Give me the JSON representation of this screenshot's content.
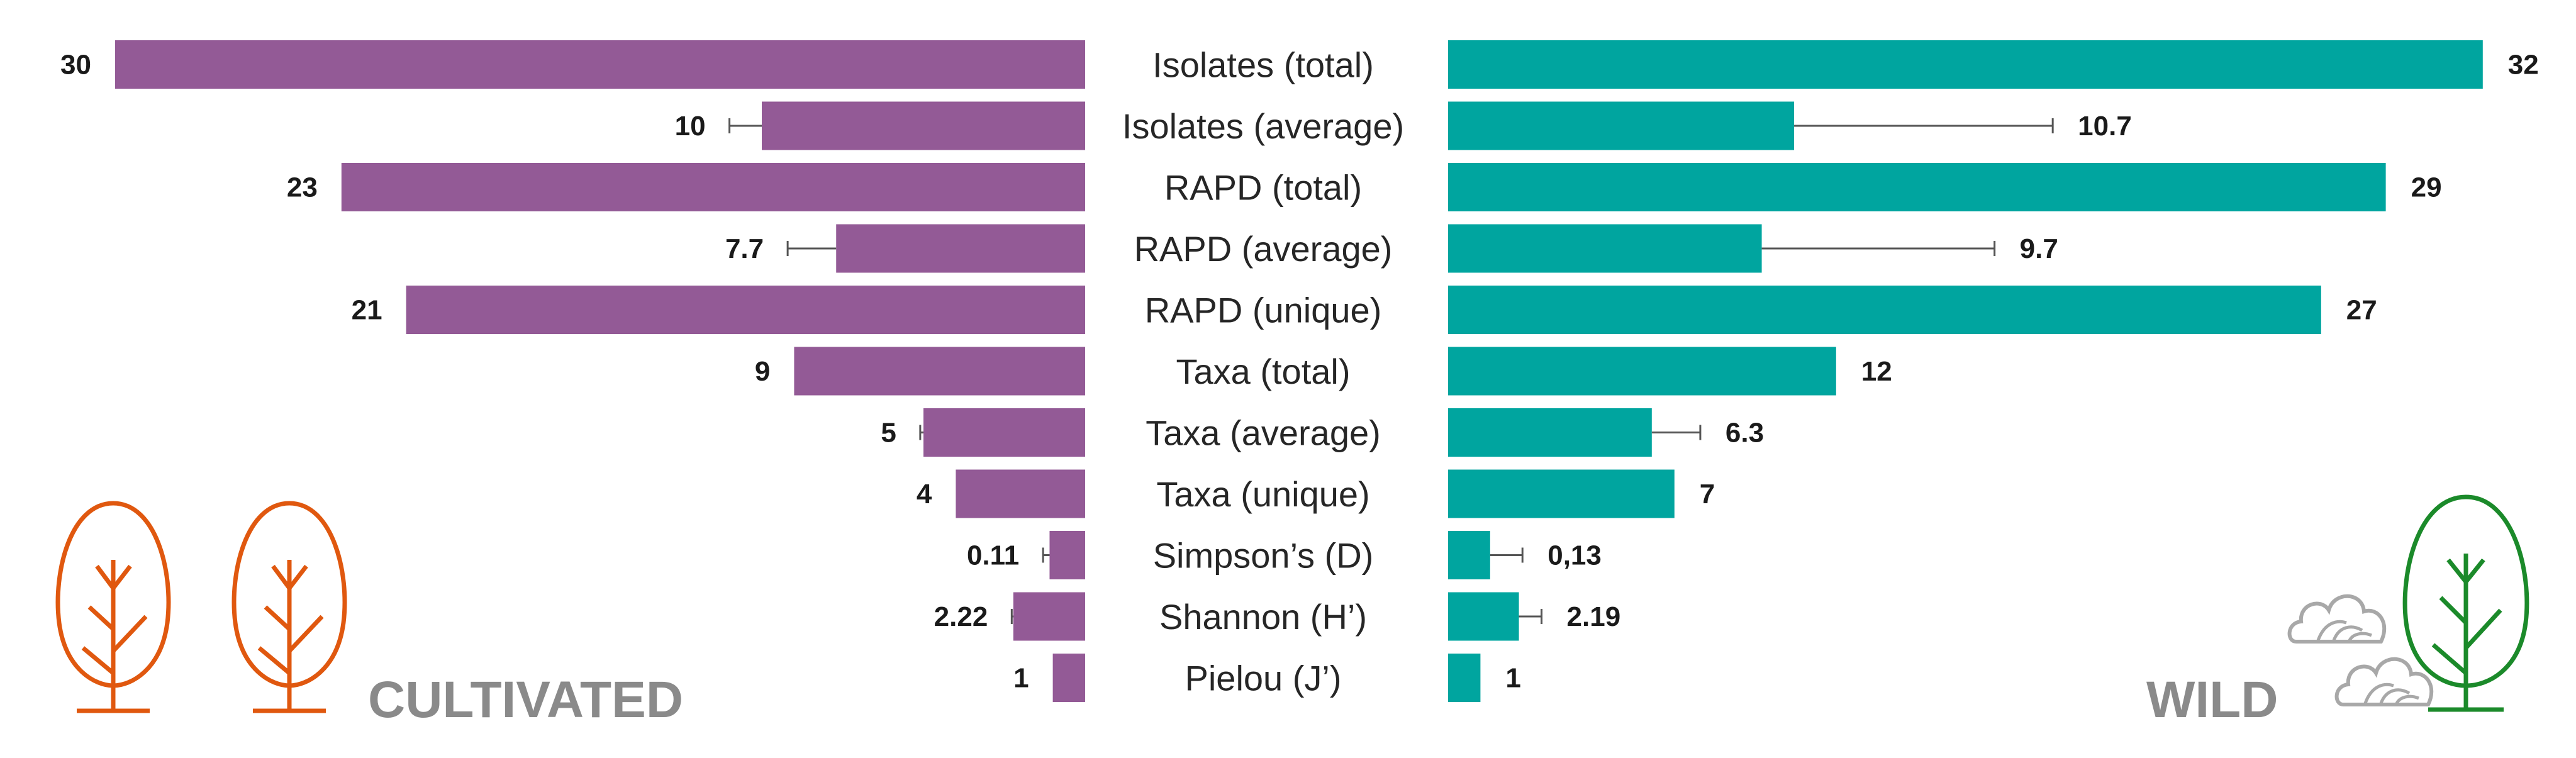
{
  "colors": {
    "cultivated": "#935a96",
    "wild": "#00a59f",
    "cultivated_tree": "#e0580f",
    "wild_tree": "#1b8a2a",
    "shrub": "#a8a8a8",
    "group_text": "#8a8a8a"
  },
  "labels": {
    "left_group": "CULTIVATED",
    "right_group": "WILD"
  },
  "chart_data": {
    "type": "bar",
    "orientation": "butterfly-horizontal",
    "categories": [
      "Isolates (total)",
      "Isolates (average)",
      "RAPD (total)",
      "RAPD (average)",
      "RAPD (unique)",
      "Taxa (total)",
      "Taxa (average)",
      "Taxa (unique)",
      "Simpson’s (D)",
      "Shannon (H’)",
      "Pielou (J’)"
    ],
    "series": [
      {
        "name": "CULTIVATED",
        "side": "left",
        "values": [
          30,
          10,
          23,
          7.7,
          21,
          9,
          5,
          4,
          0.11,
          2.22,
          1
        ],
        "errors": [
          null,
          1,
          null,
          1.5,
          null,
          null,
          0.1,
          null,
          0.02,
          0.05,
          null
        ],
        "value_labels": [
          "30",
          "10",
          "23",
          "7.7",
          "21",
          "9",
          "5",
          "4",
          "0.11",
          "2.22",
          "1"
        ]
      },
      {
        "name": "WILD",
        "side": "right",
        "values": [
          32,
          10.7,
          29,
          9.7,
          27,
          12,
          6.3,
          7,
          0.13,
          2.19,
          1
        ],
        "errors": [
          null,
          8,
          null,
          7.2,
          null,
          null,
          1.5,
          null,
          0.1,
          0.7,
          null
        ],
        "value_labels": [
          "32",
          "10.7",
          "29",
          "9.7",
          "27",
          "12",
          "6.3",
          "7",
          "0,13",
          "2.19",
          "1"
        ]
      }
    ],
    "scale": {
      "Simpson’s (D)": 10
    },
    "xlim": [
      0,
      32
    ],
    "grid": false,
    "legend": "none"
  }
}
